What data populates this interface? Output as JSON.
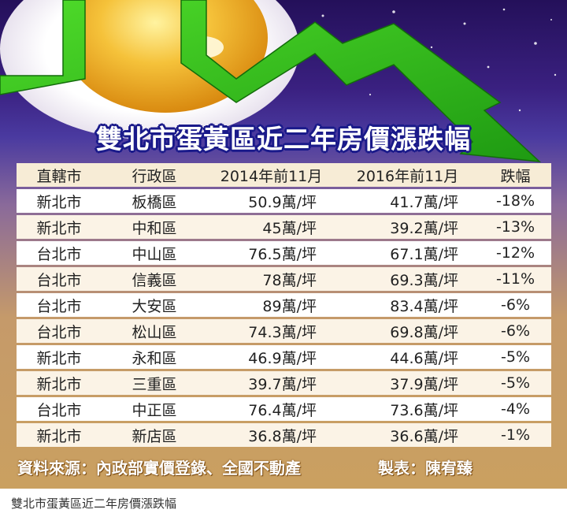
{
  "chart_data": {
    "type": "table",
    "title": "雙北市蛋黃區近二年房價漲跌幅",
    "columns": [
      "直轄市",
      "行政區",
      "2014年前11月",
      "2016年前11月",
      "跌幅"
    ],
    "rows": [
      {
        "city": "新北市",
        "district": "板橋區",
        "p2014": "50.9萬/坪",
        "p2016": "41.7萬/坪",
        "change": "-18%"
      },
      {
        "city": "新北市",
        "district": "中和區",
        "p2014": "45萬/坪",
        "p2016": "39.2萬/坪",
        "change": "-13%"
      },
      {
        "city": "台北市",
        "district": "中山區",
        "p2014": "76.5萬/坪",
        "p2016": "67.1萬/坪",
        "change": "-12%"
      },
      {
        "city": "台北市",
        "district": "信義區",
        "p2014": "78萬/坪",
        "p2016": "69.3萬/坪",
        "change": "-11%"
      },
      {
        "city": "台北市",
        "district": "大安區",
        "p2014": "89萬/坪",
        "p2016": "83.4萬/坪",
        "change": "-6%"
      },
      {
        "city": "台北市",
        "district": "松山區",
        "p2014": "74.3萬/坪",
        "p2016": "69.8萬/坪",
        "change": "-6%"
      },
      {
        "city": "新北市",
        "district": "永和區",
        "p2014": "46.9萬/坪",
        "p2016": "44.6萬/坪",
        "change": "-5%"
      },
      {
        "city": "新北市",
        "district": "三重區",
        "p2014": "39.7萬/坪",
        "p2016": "37.9萬/坪",
        "change": "-5%"
      },
      {
        "city": "台北市",
        "district": "中正區",
        "p2014": "76.4萬/坪",
        "p2016": "73.6萬/坪",
        "change": "-4%"
      },
      {
        "city": "新北市",
        "district": "新店區",
        "p2014": "36.8萬/坪",
        "p2016": "36.6萬/坪",
        "change": "-1%"
      }
    ],
    "source": "資料來源：內政部實價登錄、全國不動產",
    "maker": "製表：陳宥臻"
  },
  "caption": "雙北市蛋黃區近二年房價漲跌幅",
  "colors": {
    "arrow": "#2ec21c",
    "egg_yolk": "#f2b01e",
    "title_outline": "#1a1a8a",
    "header_bg": "#f7ecd6"
  }
}
